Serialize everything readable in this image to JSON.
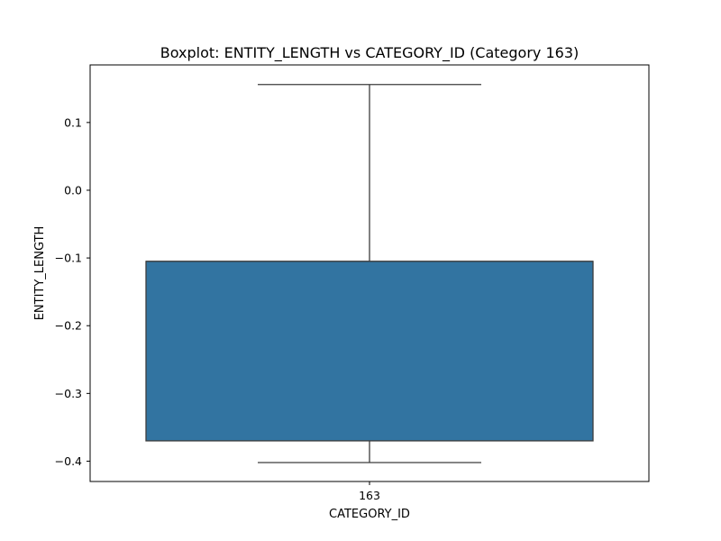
{
  "chart_data": {
    "type": "boxplot",
    "title": "Boxplot: ENTITY_LENGTH vs CATEGORY_ID (Category 163)",
    "xlabel": "CATEGORY_ID",
    "ylabel": "ENTITY_LENGTH",
    "categories": [
      "163"
    ],
    "ylim": [
      -0.43,
      0.185
    ],
    "yticks": [
      -0.4,
      -0.3,
      -0.2,
      -0.1,
      0.0,
      0.1
    ],
    "ytick_labels": [
      "−0.4",
      "−0.3",
      "−0.2",
      "−0.1",
      "0.0",
      "0.1"
    ],
    "grid": false,
    "boxes": [
      {
        "category": "163",
        "whisker_low": -0.402,
        "q1": -0.37,
        "median": -0.105,
        "q3": -0.105,
        "whisker_high": 0.156
      }
    ],
    "colors": {
      "box_fill": "#3274a1",
      "box_edge": "#3d3d3d",
      "axes": "#000000"
    }
  }
}
